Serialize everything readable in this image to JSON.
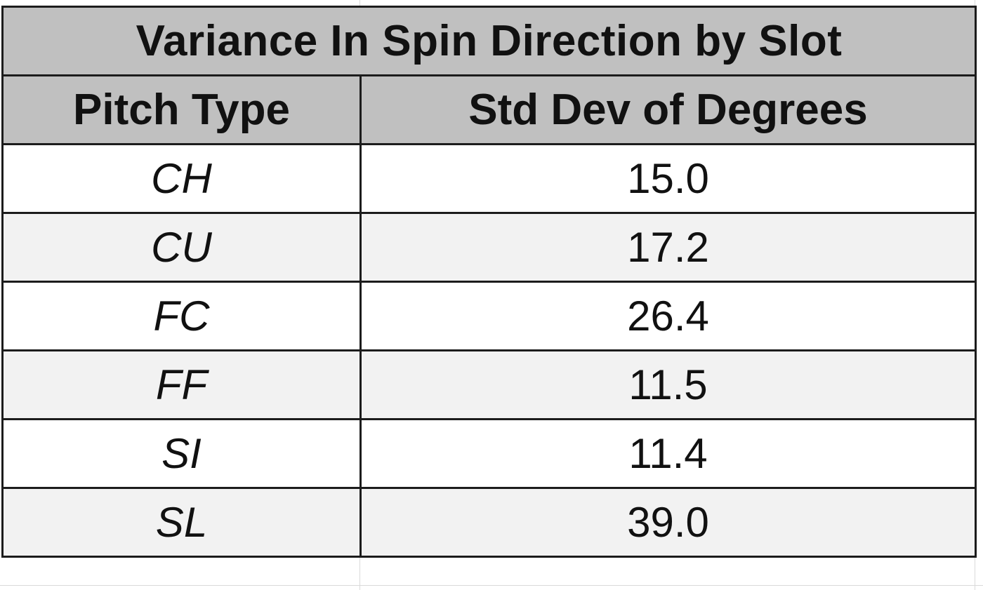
{
  "table": {
    "title": "Variance In Spin Direction by Slot",
    "headers": [
      "Pitch Type",
      "Std Dev of Degrees"
    ],
    "rows": [
      {
        "pitch_type": "CH",
        "std_dev": "15.0"
      },
      {
        "pitch_type": "CU",
        "std_dev": "17.2"
      },
      {
        "pitch_type": "FC",
        "std_dev": "26.4"
      },
      {
        "pitch_type": "FF",
        "std_dev": "11.5"
      },
      {
        "pitch_type": "SI",
        "std_dev": "11.4"
      },
      {
        "pitch_type": "SL",
        "std_dev": "39.0"
      }
    ]
  },
  "colors": {
    "header_fill": "#c0c0c0",
    "alt_row_fill": "#f2f2f2",
    "border": "#1c1c1c"
  }
}
